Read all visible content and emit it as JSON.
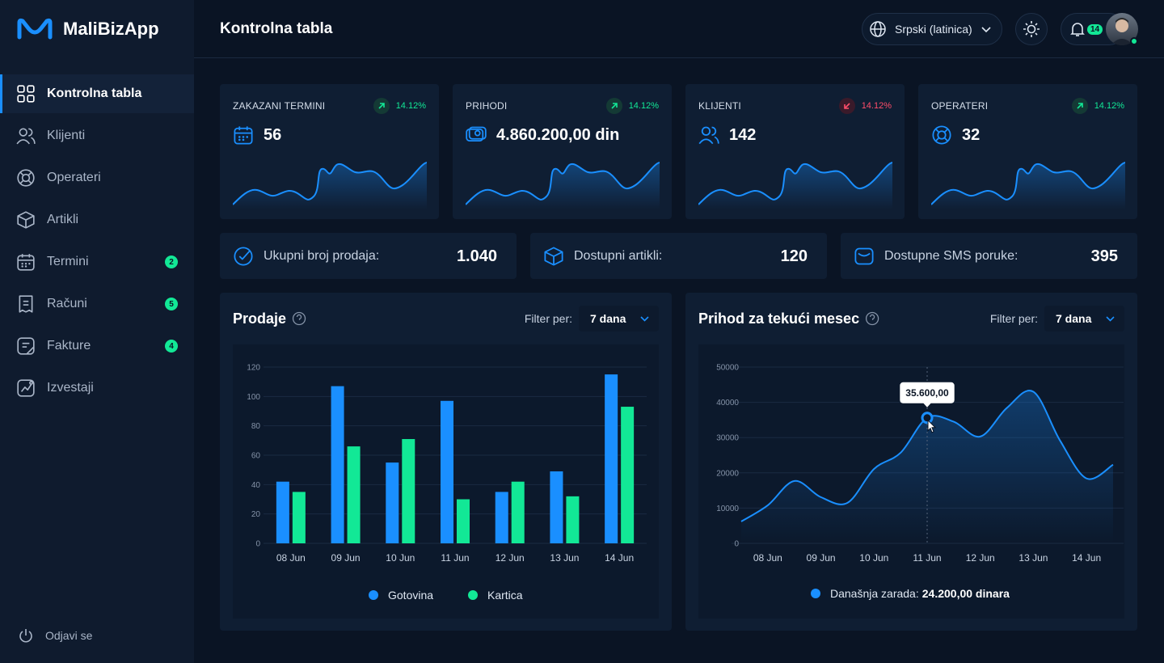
{
  "brand": "MaliBizApp",
  "nav": [
    {
      "label": "Kontrolna tabla"
    },
    {
      "label": "Klijenti"
    },
    {
      "label": "Operateri"
    },
    {
      "label": "Artikli"
    },
    {
      "label": "Termini",
      "badge": 2
    },
    {
      "label": "Računi",
      "badge": 5
    },
    {
      "label": "Fakture",
      "badge": 4
    },
    {
      "label": "Izvestaji"
    }
  ],
  "logout": "Odjavi se",
  "header": {
    "title": "Kontrolna tabla",
    "language": "Srpski (latinica)",
    "notifications": 14
  },
  "stats": [
    {
      "label": "ZAKAZANI TERMINI",
      "change": "14.12%",
      "trend": "up",
      "value": 56
    },
    {
      "label": "PRIHODI",
      "change": "14.12%",
      "trend": "up",
      "value": "4.860.200,00 din"
    },
    {
      "label": "KLIJENTI",
      "change": "14.12%",
      "trend": "down",
      "value": 142
    },
    {
      "label": "OPERATERI",
      "change": "14.12%",
      "trend": "up",
      "value": 32
    }
  ],
  "summary": [
    {
      "label": "Ukupni broj prodaja:",
      "value": "1.040"
    },
    {
      "label": "Dostupni artikli:",
      "value": 120
    },
    {
      "label": "Dostupne SMS poruke:",
      "value": 395
    }
  ],
  "chart_data": [
    {
      "type": "bar",
      "title": "Prodaje",
      "filter_label": "Filter per:",
      "filter": "7 dana",
      "categories": [
        "08 Jun",
        "09 Jun",
        "10 Jun",
        "11 Jun",
        "12 Jun",
        "13 Jun",
        "14 Jun"
      ],
      "series": [
        {
          "name": "Gotovina",
          "color": "#1a8fff",
          "values": [
            42,
            107,
            55,
            97,
            35,
            49,
            115
          ]
        },
        {
          "name": "Kartica",
          "color": "#12e896",
          "values": [
            35,
            66,
            71,
            30,
            42,
            32,
            93
          ]
        }
      ],
      "ylim": [
        0,
        120
      ],
      "yticks": [
        0,
        20,
        40,
        60,
        80,
        100,
        120
      ],
      "grid": true
    },
    {
      "type": "line",
      "title": "Prihod za tekući mesec",
      "filter_label": "Filter per:",
      "filter": "7 dana",
      "x": [
        7.5,
        8,
        8.5,
        9,
        9.5,
        10,
        10.5,
        11,
        11.5,
        12,
        12.5,
        13,
        13.5,
        14,
        14.5
      ],
      "values": [
        6200,
        10800,
        17700,
        13100,
        11500,
        21100,
        25700,
        35600,
        34500,
        30300,
        38400,
        43000,
        29200,
        18400,
        22300
      ],
      "color": "#1a8fff",
      "xlim": [
        7.5,
        14.5
      ],
      "xticks": [
        {
          "value": 8,
          "label": "08 Jun"
        },
        {
          "value": 9,
          "label": "09 Jun"
        },
        {
          "value": 10,
          "label": "10 Jun"
        },
        {
          "value": 11,
          "label": "11 Jun"
        },
        {
          "value": 12,
          "label": "12 Jun"
        },
        {
          "value": 13,
          "label": "13 Jun"
        },
        {
          "value": 14,
          "label": "14 Jun"
        }
      ],
      "ylim": [
        0,
        50000
      ],
      "yticks": [
        0,
        10000,
        20000,
        30000,
        40000,
        50000
      ],
      "grid": true,
      "tooltip": {
        "x": 11,
        "label": "35.600,00"
      },
      "footer_label": "Današnja zarada:",
      "footer_value": "24.200,00 dinara"
    }
  ]
}
